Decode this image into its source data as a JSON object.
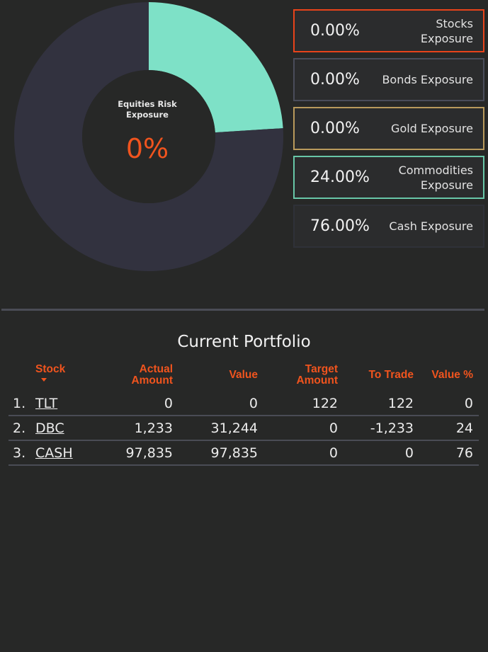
{
  "chart_data": {
    "type": "pie",
    "donut": true,
    "center_title": "Equities Risk Exposure",
    "center_value": "0%",
    "slices": [
      {
        "value": 24,
        "color": "#7ee1c7"
      },
      {
        "value": 76,
        "color": "#32323f"
      }
    ]
  },
  "exposures": [
    {
      "value": "0.00%",
      "label": "Stocks Exposure",
      "color": "#e8431a"
    },
    {
      "value": "0.00%",
      "label": "Bonds Exposure",
      "color": "#4a4d5a"
    },
    {
      "value": "0.00%",
      "label": "Gold Exposure",
      "color": "#b99a5c"
    },
    {
      "value": "24.00%",
      "label": "Commodities Exposure",
      "color": "#68c7a8"
    },
    {
      "value": "76.00%",
      "label": "Cash Exposure",
      "color": "#2f3138"
    }
  ],
  "table": {
    "title": "Current Portfolio",
    "headers": {
      "stock": "Stock",
      "actual_1": "Actual",
      "actual_2": "Amount",
      "value": "Value",
      "target_1": "Target",
      "target_2": "Amount",
      "to_trade": "To Trade",
      "value_pct": "Value %"
    },
    "rows": [
      {
        "idx": "1.",
        "stock": "TLT",
        "actual": "0",
        "value": "0",
        "target": "122",
        "to_trade": "122",
        "value_pct": "0"
      },
      {
        "idx": "2.",
        "stock": "DBC",
        "actual": "1,233",
        "value": "31,244",
        "target": "0",
        "to_trade": "-1,233",
        "value_pct": "24"
      },
      {
        "idx": "3.",
        "stock": "CASH",
        "actual": "97,835",
        "value": "97,835",
        "target": "0",
        "to_trade": "0",
        "value_pct": "76"
      }
    ]
  }
}
